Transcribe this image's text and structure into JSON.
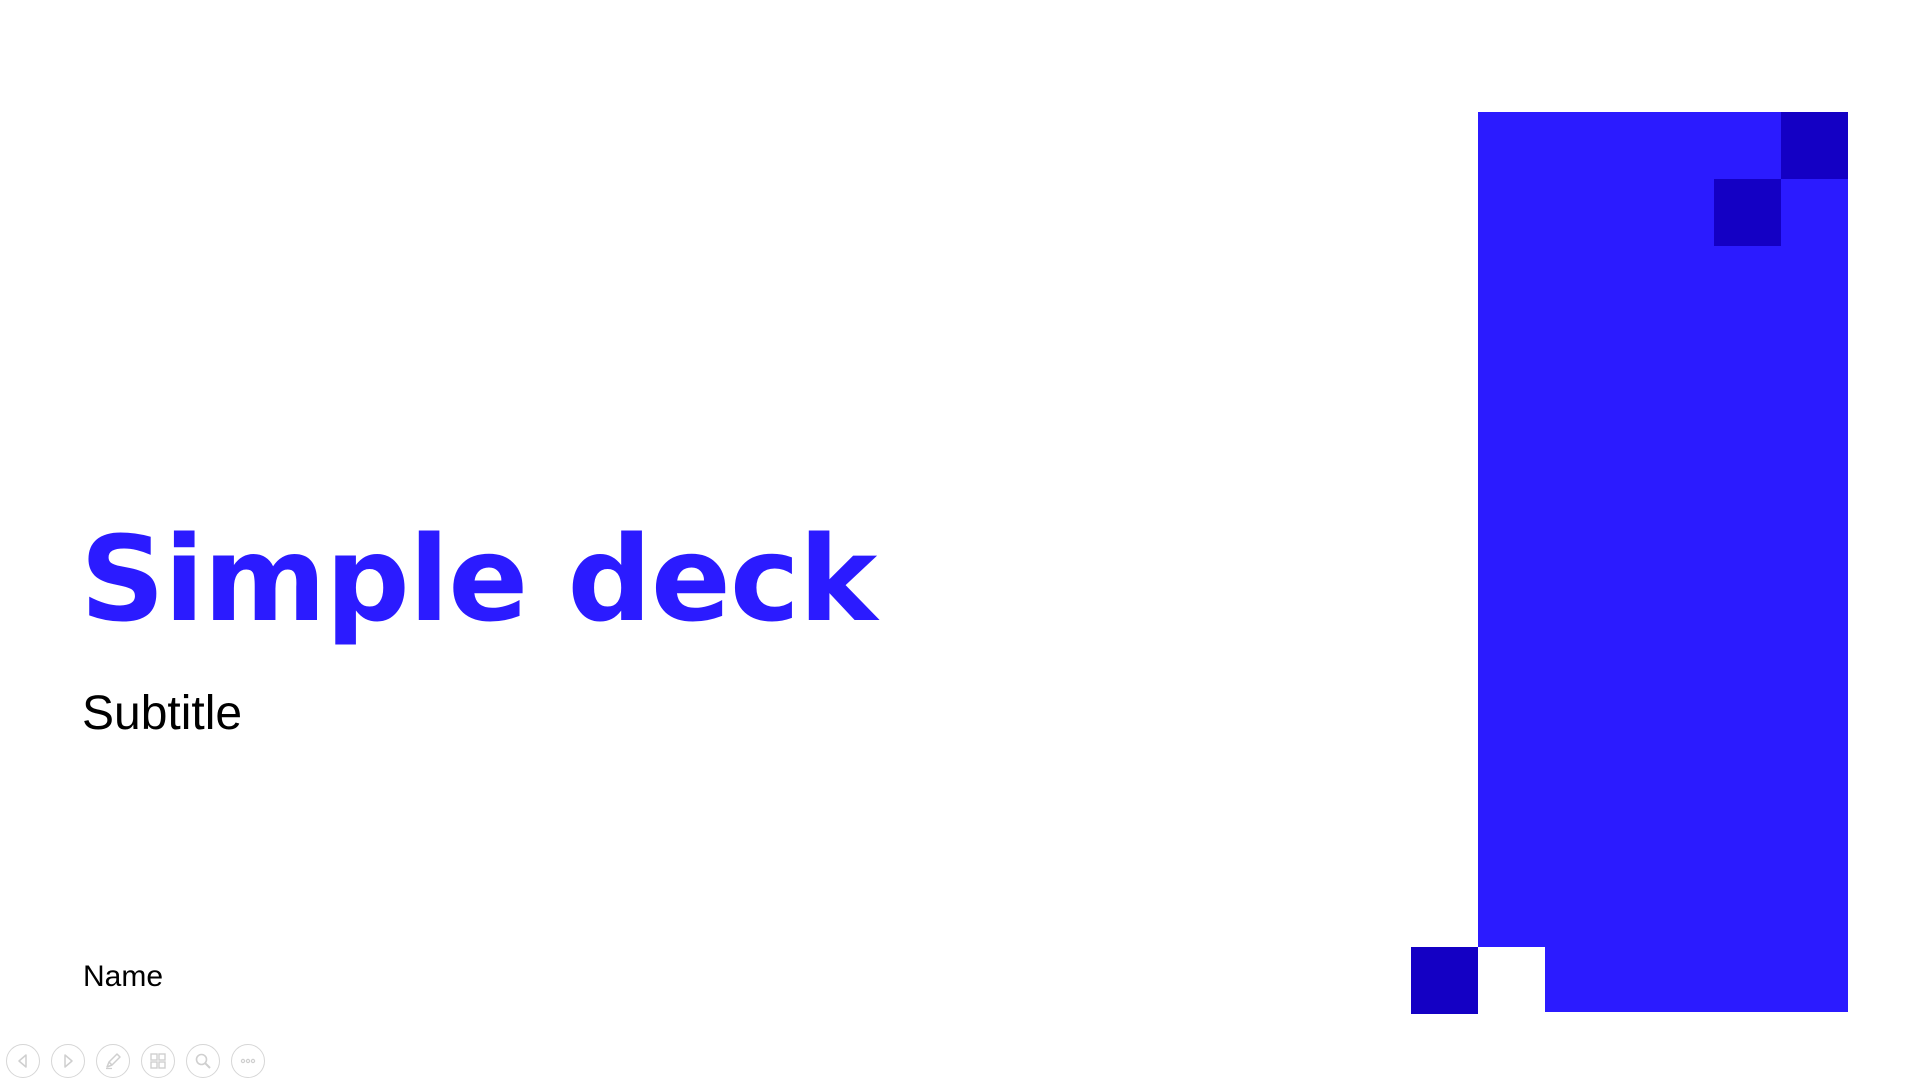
{
  "slide": {
    "title": "Simple deck",
    "subtitle": "Subtitle",
    "name": "Name"
  },
  "colors": {
    "accent": "#2b1bff",
    "accent_dark": "#1400c4",
    "toolbar_icon": "#cfcfcf"
  },
  "toolbar": {
    "icons": [
      "previous-slide-icon",
      "next-slide-icon",
      "pen-icon",
      "slides-grid-icon",
      "zoom-icon",
      "more-options-icon"
    ]
  }
}
